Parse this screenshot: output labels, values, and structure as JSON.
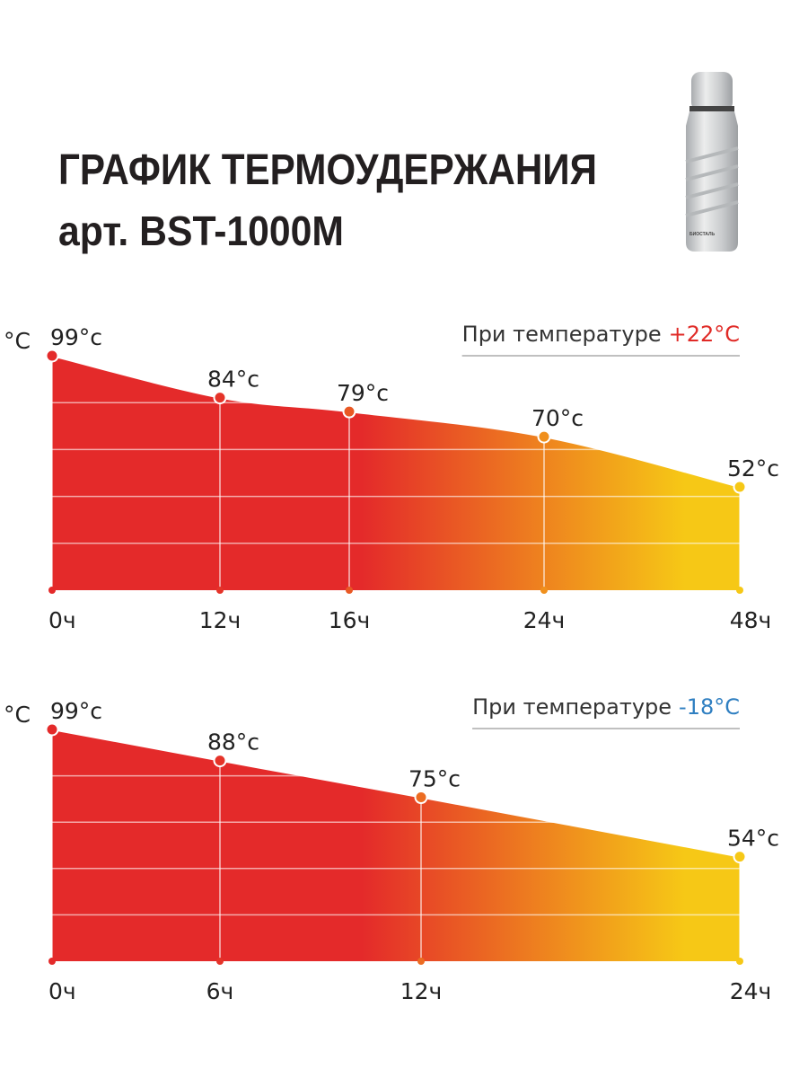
{
  "header": {
    "title": "ГРАФИК ТЕРМОУДЕРЖАНИЯ",
    "subtitle": "арт. BST-1000M",
    "brand": "БИОСТАЛЬ"
  },
  "chart_data": [
    {
      "type": "area",
      "y_label": "°C",
      "condition_label": "При температуре",
      "condition_value": "+22°C",
      "condition_color": "#e02a26",
      "categories": [
        "0ч",
        "12ч",
        "16ч",
        "24ч",
        "48ч"
      ],
      "series": [
        {
          "values": [
            99,
            84,
            79,
            70,
            52
          ],
          "value_labels": [
            "99°c",
            "84°c",
            "79°c",
            "70°c",
            "52°c"
          ]
        }
      ],
      "gradient": [
        "#e42a2a",
        "#f6c816"
      ],
      "ylim": [
        15,
        99
      ],
      "grid": true
    },
    {
      "type": "area",
      "y_label": "°C",
      "condition_label": "При температуре",
      "condition_value": "-18°C",
      "condition_color": "#2f7fc1",
      "categories": [
        "0ч",
        "6ч",
        "12ч",
        "24ч"
      ],
      "series": [
        {
          "values": [
            99,
            88,
            75,
            54
          ],
          "value_labels": [
            "99°c",
            "88°c",
            "75°c",
            "54°c"
          ]
        }
      ],
      "gradient": [
        "#e42a2a",
        "#f6c816"
      ],
      "ylim": [
        17,
        99
      ],
      "grid": true
    }
  ]
}
